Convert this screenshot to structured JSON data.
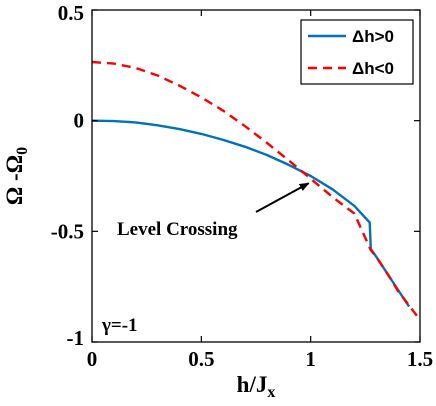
{
  "chart_data": {
    "type": "line",
    "xlabel": "h/J",
    "xlabel_sub": "x",
    "ylabel": "Ω -Ω",
    "ylabel_sub": "0",
    "xlim": [
      0,
      1.5
    ],
    "ylim": [
      -1,
      0.5
    ],
    "xticks": [
      "0",
      "0.5",
      "1",
      "1.5"
    ],
    "yticks": [
      "0.5",
      "0",
      "-0.5",
      "-1"
    ],
    "legend_position": "top-right",
    "series": [
      {
        "name": "Δh>0",
        "color": "#0072BD",
        "style": "solid",
        "points": [
          [
            0,
            0
          ],
          [
            0.1,
            -0.002
          ],
          [
            0.2,
            -0.008
          ],
          [
            0.3,
            -0.021
          ],
          [
            0.4,
            -0.038
          ],
          [
            0.5,
            -0.06
          ],
          [
            0.6,
            -0.087
          ],
          [
            0.7,
            -0.118
          ],
          [
            0.8,
            -0.155
          ],
          [
            0.9,
            -0.2
          ],
          [
            1.0,
            -0.25
          ],
          [
            1.1,
            -0.31
          ],
          [
            1.2,
            -0.385
          ],
          [
            1.27,
            -0.46
          ],
          [
            1.275,
            -0.58
          ],
          [
            1.3,
            -0.615
          ],
          [
            1.35,
            -0.69
          ],
          [
            1.4,
            -0.765
          ],
          [
            1.45,
            -0.84
          ]
        ]
      },
      {
        "name": "Δh<0",
        "color": "#FF0000",
        "style": "dashed",
        "points": [
          [
            0,
            0.265
          ],
          [
            0.1,
            0.258
          ],
          [
            0.2,
            0.238
          ],
          [
            0.3,
            0.204
          ],
          [
            0.4,
            0.158
          ],
          [
            0.5,
            0.105
          ],
          [
            0.6,
            0.045
          ],
          [
            0.7,
            -0.025
          ],
          [
            0.8,
            -0.1
          ],
          [
            0.9,
            -0.18
          ],
          [
            1.0,
            -0.262
          ],
          [
            1.1,
            -0.345
          ],
          [
            1.2,
            -0.42
          ],
          [
            1.275,
            -0.585
          ],
          [
            1.3,
            -0.615
          ],
          [
            1.35,
            -0.69
          ],
          [
            1.4,
            -0.77
          ],
          [
            1.45,
            -0.835
          ],
          [
            1.5,
            -0.9
          ]
        ]
      }
    ],
    "annotations": [
      {
        "text": "Level Crossing",
        "arrow_to": [
          1.0,
          -0.26
        ]
      },
      {
        "text": "γ=-1"
      }
    ]
  }
}
